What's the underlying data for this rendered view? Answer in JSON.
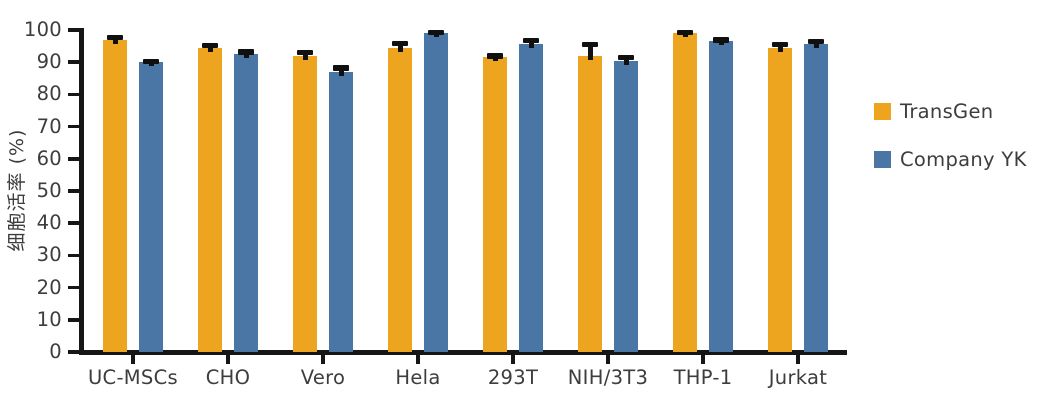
{
  "chart_data": {
    "type": "bar",
    "title": "",
    "xlabel": "",
    "ylabel": "细胞活率 (%)",
    "ylim": [
      0,
      100
    ],
    "yticks": [
      0,
      10,
      20,
      30,
      40,
      50,
      60,
      70,
      80,
      90,
      100
    ],
    "grid": false,
    "legend_position": "right",
    "categories": [
      "UC-MSCs",
      "CHO",
      "Vero",
      "Hela",
      "293T",
      "NIH/3T3",
      "THP-1",
      "Jurkat"
    ],
    "series": [
      {
        "name": "TransGen",
        "color": "#EDA41F",
        "values": [
          97,
          94.5,
          92,
          94.5,
          91.5,
          92,
          99,
          94.5
        ],
        "errors": [
          1.2,
          1.2,
          1.5,
          1.8,
          1.0,
          4.0,
          0.8,
          1.5
        ]
      },
      {
        "name": "Company YK",
        "color": "#4A76A5",
        "values": [
          90,
          92.5,
          87,
          99,
          95.5,
          90.5,
          96.5,
          95.5
        ],
        "errors": [
          0.8,
          1.2,
          1.8,
          0.8,
          1.8,
          1.5,
          1.0,
          1.5
        ]
      }
    ],
    "error_bar_color": "#101010",
    "axis_color": "#161616",
    "text_color": "#3d3d3d"
  }
}
